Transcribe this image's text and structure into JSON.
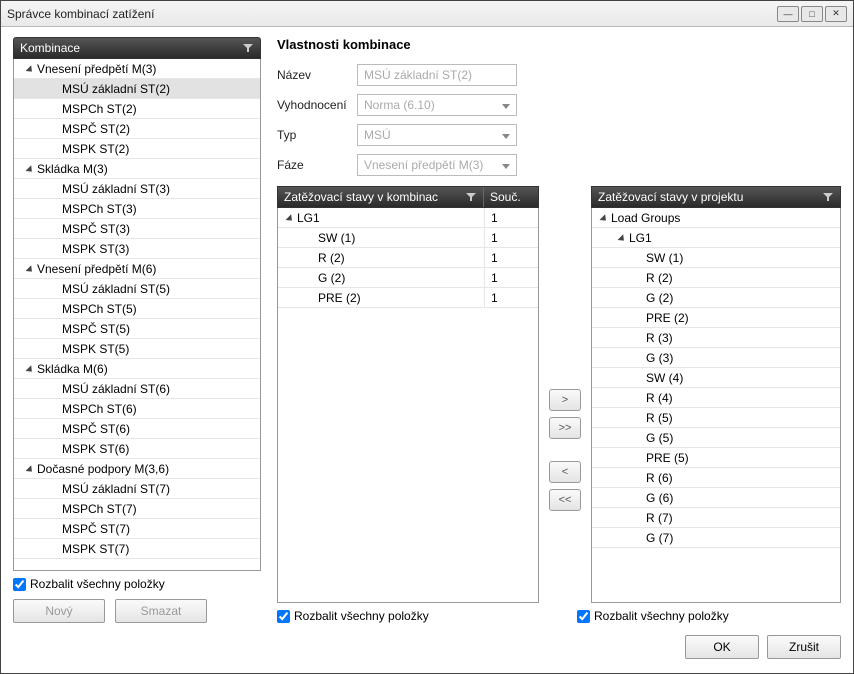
{
  "window": {
    "title": "Správce kombinací zatížení"
  },
  "leftPanel": {
    "header": "Kombinace",
    "expandAll": "Rozbalit všechny položky",
    "btnNew": "Nový",
    "btnDelete": "Smazat",
    "items": [
      {
        "label": "Vnesení předpětí M(3)",
        "level": 0,
        "expanded": true
      },
      {
        "label": "MSÚ základní ST(2)",
        "level": 1,
        "selected": true
      },
      {
        "label": "MSPCh ST(2)",
        "level": 1
      },
      {
        "label": "MSPČ ST(2)",
        "level": 1
      },
      {
        "label": "MSPK ST(2)",
        "level": 1
      },
      {
        "label": "Skládka M(3)",
        "level": 0,
        "expanded": true
      },
      {
        "label": "MSÚ základní ST(3)",
        "level": 1
      },
      {
        "label": "MSPCh ST(3)",
        "level": 1
      },
      {
        "label": "MSPČ ST(3)",
        "level": 1
      },
      {
        "label": "MSPK ST(3)",
        "level": 1
      },
      {
        "label": "Vnesení předpětí M(6)",
        "level": 0,
        "expanded": true
      },
      {
        "label": "MSÚ základní ST(5)",
        "level": 1
      },
      {
        "label": "MSPCh ST(5)",
        "level": 1
      },
      {
        "label": "MSPČ ST(5)",
        "level": 1
      },
      {
        "label": "MSPK ST(5)",
        "level": 1
      },
      {
        "label": "Skládka M(6)",
        "level": 0,
        "expanded": true
      },
      {
        "label": "MSÚ základní ST(6)",
        "level": 1
      },
      {
        "label": "MSPCh ST(6)",
        "level": 1
      },
      {
        "label": "MSPČ ST(6)",
        "level": 1
      },
      {
        "label": "MSPK ST(6)",
        "level": 1
      },
      {
        "label": "Dočasné podpory M(3,6)",
        "level": 0,
        "expanded": true
      },
      {
        "label": "MSÚ základní ST(7)",
        "level": 1
      },
      {
        "label": "MSPCh ST(7)",
        "level": 1
      },
      {
        "label": "MSPČ ST(7)",
        "level": 1
      },
      {
        "label": "MSPK ST(7)",
        "level": 1
      }
    ]
  },
  "props": {
    "title": "Vlastnosti kombinace",
    "nameLabel": "Název",
    "nameValue": "MSÚ základní ST(2)",
    "evalLabel": "Vyhodnocení",
    "evalValue": "Norma (6.10)",
    "typeLabel": "Typ",
    "typeValue": "MSÚ",
    "phaseLabel": "Fáze",
    "phaseValue": "Vnesení předpětí M(3)",
    "expandAll": "Rozbalit všechny položky",
    "comboHeader": "Zatěžovací stavy v kombinac",
    "coefHeader": "Souč.",
    "projectHeader": "Zatěžovací stavy v projektu"
  },
  "comboStates": [
    {
      "label": "LG1",
      "coef": "1",
      "level": 0,
      "expanded": true
    },
    {
      "label": "SW (1)",
      "coef": "1",
      "level": 1
    },
    {
      "label": "R (2)",
      "coef": "1",
      "level": 1
    },
    {
      "label": "G (2)",
      "coef": "1",
      "level": 1
    },
    {
      "label": "PRE (2)",
      "coef": "1",
      "level": 1
    }
  ],
  "projectStates": [
    {
      "label": "Load Groups",
      "level": 0,
      "expanded": true
    },
    {
      "label": "LG1",
      "level": 1,
      "expanded": true
    },
    {
      "label": "SW (1)",
      "level": 2
    },
    {
      "label": "R (2)",
      "level": 2
    },
    {
      "label": "G (2)",
      "level": 2
    },
    {
      "label": "PRE (2)",
      "level": 2
    },
    {
      "label": "R (3)",
      "level": 2
    },
    {
      "label": "G (3)",
      "level": 2
    },
    {
      "label": "SW (4)",
      "level": 2
    },
    {
      "label": "R (4)",
      "level": 2
    },
    {
      "label": "R (5)",
      "level": 2
    },
    {
      "label": "G (5)",
      "level": 2
    },
    {
      "label": "PRE (5)",
      "level": 2
    },
    {
      "label": "R (6)",
      "level": 2
    },
    {
      "label": "G (6)",
      "level": 2
    },
    {
      "label": "R (7)",
      "level": 2
    },
    {
      "label": "G (7)",
      "level": 2
    }
  ],
  "moveBtns": {
    "right": ">",
    "rightAll": ">>",
    "left": "<",
    "leftAll": "<<"
  },
  "footer": {
    "ok": "OK",
    "cancel": "Zrušit"
  }
}
